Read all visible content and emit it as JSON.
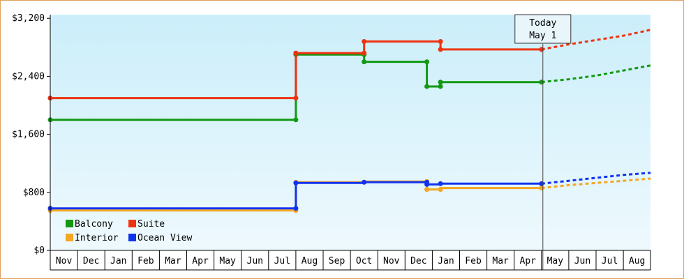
{
  "chart_data": {
    "type": "line",
    "title": "",
    "xlabel": "",
    "ylabel": "",
    "ylim": [
      0,
      3250
    ],
    "yticks": [
      0,
      800,
      1600,
      2400,
      3200
    ],
    "ytick_labels": [
      "$0",
      "$800",
      "$1,600",
      "$2,400",
      "$3,200"
    ],
    "months": [
      "Nov",
      "Dec",
      "Jan",
      "Feb",
      "Mar",
      "Apr",
      "May",
      "Jun",
      "Jul",
      "Aug",
      "Sep",
      "Oct",
      "Nov",
      "Dec",
      "Jan",
      "Feb",
      "Mar",
      "Apr",
      "May",
      "Jun",
      "Jul",
      "Aug"
    ],
    "today_index": 18,
    "today_label_line1": "Today",
    "today_label_line2": "May 1",
    "legend_position": "bottom-left",
    "grid": false,
    "series": [
      {
        "name": "Balcony",
        "color": "#119911",
        "points": [
          [
            0,
            1800
          ],
          [
            9.0,
            1800
          ],
          [
            9.0,
            2700
          ],
          [
            11.5,
            2700
          ],
          [
            11.5,
            2600
          ],
          [
            13.8,
            2600
          ],
          [
            13.8,
            2260
          ],
          [
            14.3,
            2260
          ],
          [
            14.3,
            2320
          ],
          [
            18.0,
            2320
          ]
        ],
        "forecast": [
          [
            18.0,
            2320
          ],
          [
            19,
            2360
          ],
          [
            20,
            2410
          ],
          [
            21,
            2480
          ],
          [
            22,
            2550
          ]
        ]
      },
      {
        "name": "Suite",
        "color": "#ee3311",
        "points": [
          [
            0,
            2100
          ],
          [
            9.0,
            2100
          ],
          [
            9.0,
            2720
          ],
          [
            11.5,
            2720
          ],
          [
            11.5,
            2880
          ],
          [
            14.3,
            2880
          ],
          [
            14.3,
            2770
          ],
          [
            18.0,
            2770
          ]
        ],
        "forecast": [
          [
            18.0,
            2770
          ],
          [
            19,
            2840
          ],
          [
            20,
            2900
          ],
          [
            21,
            2960
          ],
          [
            22,
            3040
          ]
        ]
      },
      {
        "name": "Interior",
        "color": "#f5a623",
        "points": [
          [
            0,
            550
          ],
          [
            9.0,
            550
          ],
          [
            9.0,
            940
          ],
          [
            11.5,
            940
          ],
          [
            11.5,
            950
          ],
          [
            13.8,
            950
          ],
          [
            13.8,
            840
          ],
          [
            14.3,
            840
          ],
          [
            14.3,
            860
          ],
          [
            18.0,
            860
          ]
        ],
        "forecast": [
          [
            18.0,
            860
          ],
          [
            19,
            900
          ],
          [
            20,
            930
          ],
          [
            21,
            960
          ],
          [
            22,
            990
          ]
        ]
      },
      {
        "name": "Ocean View",
        "color": "#1133ee",
        "points": [
          [
            0,
            580
          ],
          [
            9.0,
            580
          ],
          [
            9.0,
            930
          ],
          [
            11.5,
            930
          ],
          [
            11.5,
            940
          ],
          [
            13.8,
            940
          ],
          [
            13.8,
            910
          ],
          [
            14.3,
            910
          ],
          [
            14.3,
            920
          ],
          [
            18.0,
            920
          ]
        ],
        "forecast": [
          [
            18.0,
            920
          ],
          [
            19,
            960
          ],
          [
            20,
            1000
          ],
          [
            21,
            1040
          ],
          [
            22,
            1070
          ]
        ]
      }
    ],
    "markers": {
      "Balcony": [
        [
          0,
          1800
        ],
        [
          9.0,
          1800
        ],
        [
          9.0,
          2700
        ],
        [
          11.5,
          2700
        ],
        [
          11.5,
          2600
        ],
        [
          13.8,
          2600
        ],
        [
          13.8,
          2260
        ],
        [
          14.3,
          2260
        ],
        [
          14.3,
          2320
        ],
        [
          18.0,
          2320
        ]
      ],
      "Suite": [
        [
          0,
          2100
        ],
        [
          9.0,
          2100
        ],
        [
          9.0,
          2720
        ],
        [
          11.5,
          2720
        ],
        [
          11.5,
          2880
        ],
        [
          14.3,
          2880
        ],
        [
          14.3,
          2770
        ],
        [
          18.0,
          2770
        ]
      ],
      "Interior": [
        [
          0,
          550
        ],
        [
          9.0,
          550
        ],
        [
          9.0,
          940
        ],
        [
          11.5,
          940
        ],
        [
          13.8,
          950
        ],
        [
          13.8,
          840
        ],
        [
          14.3,
          840
        ],
        [
          18.0,
          860
        ]
      ],
      "Ocean View": [
        [
          0,
          580
        ],
        [
          9.0,
          580
        ],
        [
          9.0,
          930
        ],
        [
          11.5,
          940
        ],
        [
          13.8,
          940
        ],
        [
          13.8,
          910
        ],
        [
          14.3,
          920
        ],
        [
          18.0,
          920
        ]
      ]
    }
  }
}
